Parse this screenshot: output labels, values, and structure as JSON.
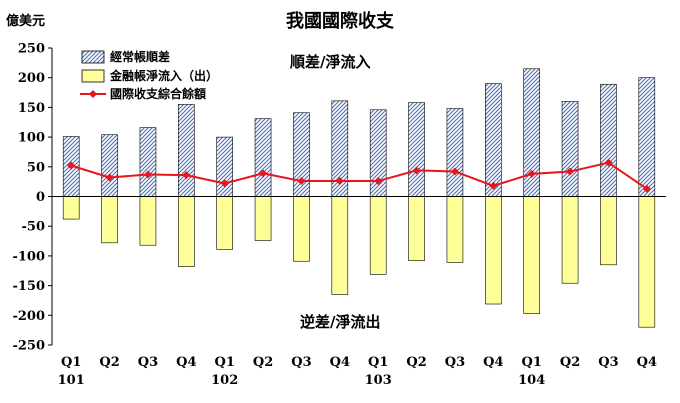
{
  "chart_data": {
    "type": "bar",
    "title": "我國國際收支",
    "unit_label": "億美元",
    "categories": [
      "Q1",
      "Q2",
      "Q3",
      "Q4",
      "Q1",
      "Q2",
      "Q3",
      "Q4",
      "Q1",
      "Q2",
      "Q3",
      "Q4",
      "Q1",
      "Q2",
      "Q3",
      "Q4"
    ],
    "year_labels": [
      {
        "index": 0,
        "label": "101"
      },
      {
        "index": 4,
        "label": "102"
      },
      {
        "index": 8,
        "label": "103"
      },
      {
        "index": 12,
        "label": "104"
      }
    ],
    "ylim": [
      -250,
      250
    ],
    "yticks": [
      250,
      200,
      150,
      100,
      50,
      0,
      -50,
      -100,
      -150,
      -200,
      -250
    ],
    "series": [
      {
        "name": "經常帳順差",
        "type": "bar",
        "color": "#4a6fb5",
        "values": [
          101,
          104,
          116,
          155,
          100,
          131,
          141,
          161,
          146,
          158,
          148,
          190,
          215,
          160,
          189,
          200
        ]
      },
      {
        "name": "金融帳淨流入（出）",
        "type": "bar",
        "color": "#ffff99",
        "values": [
          -38,
          -78,
          -82,
          -118,
          -89,
          -74,
          -109,
          -165,
          -131,
          -108,
          -111,
          -181,
          -197,
          -146,
          -115,
          -220
        ]
      },
      {
        "name": "國際收支綜合餘額",
        "type": "line",
        "color": "#e8141e",
        "values": [
          52,
          32,
          37,
          36,
          22,
          39,
          26,
          26,
          26,
          44,
          42,
          18,
          38,
          42,
          57,
          13
        ]
      }
    ],
    "annotations": {
      "top": "順差/淨流入",
      "bottom": "逆差/淨流出"
    },
    "legend_position": "top-left",
    "grid": false
  }
}
